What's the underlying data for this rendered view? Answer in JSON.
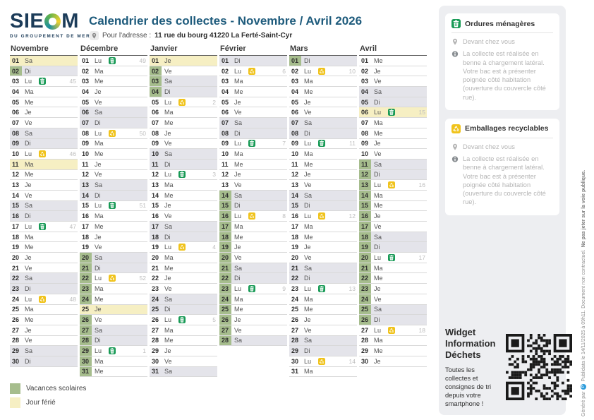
{
  "header": {
    "brand": "SIEOM",
    "brand_subtitle": "DU GROUPEMENT DE MER",
    "title": "Calendrier des collectes - Novembre / Avril 2026",
    "address_label": "Pour l'adresse :",
    "address": "11 rue du bourg 41220 La Ferté-Saint-Cyr"
  },
  "colors": {
    "title": "#1e5b7c",
    "weekend": "#e4e4ea",
    "ferie": "#f6efc3",
    "vacances": "#a6bd8d",
    "ordures_icon": "#189a56",
    "emballages_icon": "#f0c31c"
  },
  "legend": [
    {
      "label": "Vacances scolaires",
      "color": "#a6bd8d"
    },
    {
      "label": "Jour férié",
      "color": "#f6efc3"
    }
  ],
  "sidebar": {
    "cards": [
      {
        "icon": "trash",
        "icon_color": "#189a56",
        "title": "Ordures ménagères",
        "location": "Devant chez vous",
        "note": "La collecte est réalisée en benne à chargement latéral. Votre bac est à présenter poignée côté habitation (ouverture du couvercle côté rue)."
      },
      {
        "icon": "recycle",
        "icon_color": "#f0c31c",
        "title": "Emballages recyclables",
        "location": "Devant chez vous",
        "note": "La collecte est réalisée en benne à chargement latéral. Votre bac est à présenter poignée côté habitation (ouverture du couvercle côté rue)."
      }
    ],
    "widget": {
      "title": "Widget Information Déchets",
      "text": "Toutes les collectes et consignes de tri depuis votre smartphone !"
    }
  },
  "footer_vertical": {
    "pre": "Généré par",
    "brand_initial": "P",
    "mid": "Publidata le 14/11/2025 à 09h11. Document non contractuel.",
    "bold": "Ne pas jeter sur la voie publique."
  },
  "months": [
    {
      "name": "Novembre",
      "days": [
        {
          "n": "01",
          "d": "Sa",
          "h": 1
        },
        {
          "n": "02",
          "d": "Di",
          "w": 1,
          "v": 1
        },
        {
          "n": "03",
          "d": "Lu",
          "i": "om",
          "wk": "45"
        },
        {
          "n": "04",
          "d": "Ma"
        },
        {
          "n": "05",
          "d": "Me"
        },
        {
          "n": "06",
          "d": "Je"
        },
        {
          "n": "07",
          "d": "Ve"
        },
        {
          "n": "08",
          "d": "Sa",
          "w": 1
        },
        {
          "n": "09",
          "d": "Di",
          "w": 1
        },
        {
          "n": "10",
          "d": "Lu",
          "i": "er",
          "wk": "46"
        },
        {
          "n": "11",
          "d": "Ma",
          "h": 1
        },
        {
          "n": "12",
          "d": "Me"
        },
        {
          "n": "13",
          "d": "Je"
        },
        {
          "n": "14",
          "d": "Ve"
        },
        {
          "n": "15",
          "d": "Sa",
          "w": 1
        },
        {
          "n": "16",
          "d": "Di",
          "w": 1
        },
        {
          "n": "17",
          "d": "Lu",
          "i": "om",
          "wk": "47"
        },
        {
          "n": "18",
          "d": "Ma"
        },
        {
          "n": "19",
          "d": "Me"
        },
        {
          "n": "20",
          "d": "Je"
        },
        {
          "n": "21",
          "d": "Ve"
        },
        {
          "n": "22",
          "d": "Sa",
          "w": 1
        },
        {
          "n": "23",
          "d": "Di",
          "w": 1
        },
        {
          "n": "24",
          "d": "Lu",
          "i": "er",
          "wk": "48"
        },
        {
          "n": "25",
          "d": "Ma"
        },
        {
          "n": "26",
          "d": "Me"
        },
        {
          "n": "27",
          "d": "Je"
        },
        {
          "n": "28",
          "d": "Ve"
        },
        {
          "n": "29",
          "d": "Sa",
          "w": 1
        },
        {
          "n": "30",
          "d": "Di",
          "w": 1
        }
      ]
    },
    {
      "name": "Décembre",
      "days": [
        {
          "n": "01",
          "d": "Lu",
          "i": "om",
          "wk": "49"
        },
        {
          "n": "02",
          "d": "Ma"
        },
        {
          "n": "03",
          "d": "Me"
        },
        {
          "n": "04",
          "d": "Je"
        },
        {
          "n": "05",
          "d": "Ve"
        },
        {
          "n": "06",
          "d": "Sa",
          "w": 1
        },
        {
          "n": "07",
          "d": "Di",
          "w": 1
        },
        {
          "n": "08",
          "d": "Lu",
          "i": "er",
          "wk": "50"
        },
        {
          "n": "09",
          "d": "Ma"
        },
        {
          "n": "10",
          "d": "Me"
        },
        {
          "n": "11",
          "d": "Je"
        },
        {
          "n": "12",
          "d": "Ve"
        },
        {
          "n": "13",
          "d": "Sa",
          "w": 1
        },
        {
          "n": "14",
          "d": "Di",
          "w": 1
        },
        {
          "n": "15",
          "d": "Lu",
          "i": "om",
          "wk": "51"
        },
        {
          "n": "16",
          "d": "Ma"
        },
        {
          "n": "17",
          "d": "Me"
        },
        {
          "n": "18",
          "d": "Je"
        },
        {
          "n": "19",
          "d": "Ve"
        },
        {
          "n": "20",
          "d": "Sa",
          "w": 1,
          "v": 1
        },
        {
          "n": "21",
          "d": "Di",
          "w": 1,
          "v": 1
        },
        {
          "n": "22",
          "d": "Lu",
          "i": "er",
          "wk": "52",
          "v": 1
        },
        {
          "n": "23",
          "d": "Ma",
          "v": 1
        },
        {
          "n": "24",
          "d": "Me",
          "v": 1
        },
        {
          "n": "25",
          "d": "Je",
          "h": 1
        },
        {
          "n": "26",
          "d": "Ve",
          "v": 1
        },
        {
          "n": "27",
          "d": "Sa",
          "w": 1,
          "v": 1
        },
        {
          "n": "28",
          "d": "Di",
          "w": 1,
          "v": 1
        },
        {
          "n": "29",
          "d": "Lu",
          "i": "om",
          "wk": "1",
          "v": 1
        },
        {
          "n": "30",
          "d": "Ma",
          "v": 1
        },
        {
          "n": "31",
          "d": "Me",
          "v": 1
        }
      ]
    },
    {
      "name": "Janvier",
      "days": [
        {
          "n": "01",
          "d": "Je",
          "h": 1
        },
        {
          "n": "02",
          "d": "Ve",
          "v": 1
        },
        {
          "n": "03",
          "d": "Sa",
          "w": 1,
          "v": 1
        },
        {
          "n": "04",
          "d": "Di",
          "w": 1,
          "v": 1
        },
        {
          "n": "05",
          "d": "Lu",
          "i": "er",
          "wk": "2"
        },
        {
          "n": "06",
          "d": "Ma"
        },
        {
          "n": "07",
          "d": "Me"
        },
        {
          "n": "08",
          "d": "Je"
        },
        {
          "n": "09",
          "d": "Ve"
        },
        {
          "n": "10",
          "d": "Sa",
          "w": 1
        },
        {
          "n": "11",
          "d": "Di",
          "w": 1
        },
        {
          "n": "12",
          "d": "Lu",
          "i": "om",
          "wk": "3"
        },
        {
          "n": "13",
          "d": "Ma"
        },
        {
          "n": "14",
          "d": "Me"
        },
        {
          "n": "15",
          "d": "Je"
        },
        {
          "n": "16",
          "d": "Ve"
        },
        {
          "n": "17",
          "d": "Sa",
          "w": 1
        },
        {
          "n": "18",
          "d": "Di",
          "w": 1
        },
        {
          "n": "19",
          "d": "Lu",
          "i": "er",
          "wk": "4"
        },
        {
          "n": "20",
          "d": "Ma"
        },
        {
          "n": "21",
          "d": "Me"
        },
        {
          "n": "22",
          "d": "Je"
        },
        {
          "n": "23",
          "d": "Ve"
        },
        {
          "n": "24",
          "d": "Sa",
          "w": 1
        },
        {
          "n": "25",
          "d": "Di",
          "w": 1
        },
        {
          "n": "26",
          "d": "Lu",
          "i": "om",
          "wk": "5"
        },
        {
          "n": "27",
          "d": "Ma"
        },
        {
          "n": "28",
          "d": "Me"
        },
        {
          "n": "29",
          "d": "Je"
        },
        {
          "n": "30",
          "d": "Ve"
        },
        {
          "n": "31",
          "d": "Sa",
          "w": 1
        }
      ]
    },
    {
      "name": "Février",
      "days": [
        {
          "n": "01",
          "d": "Di",
          "w": 1
        },
        {
          "n": "02",
          "d": "Lu",
          "i": "er",
          "wk": "6"
        },
        {
          "n": "03",
          "d": "Ma"
        },
        {
          "n": "04",
          "d": "Me"
        },
        {
          "n": "05",
          "d": "Je"
        },
        {
          "n": "06",
          "d": "Ve"
        },
        {
          "n": "07",
          "d": "Sa",
          "w": 1
        },
        {
          "n": "08",
          "d": "Di",
          "w": 1
        },
        {
          "n": "09",
          "d": "Lu",
          "i": "om",
          "wk": "7"
        },
        {
          "n": "10",
          "d": "Ma"
        },
        {
          "n": "11",
          "d": "Me"
        },
        {
          "n": "12",
          "d": "Je"
        },
        {
          "n": "13",
          "d": "Ve"
        },
        {
          "n": "14",
          "d": "Sa",
          "w": 1,
          "v": 1
        },
        {
          "n": "15",
          "d": "Di",
          "w": 1,
          "v": 1
        },
        {
          "n": "16",
          "d": "Lu",
          "i": "er",
          "wk": "8",
          "v": 1
        },
        {
          "n": "17",
          "d": "Ma",
          "v": 1
        },
        {
          "n": "18",
          "d": "Me",
          "v": 1
        },
        {
          "n": "19",
          "d": "Je",
          "v": 1
        },
        {
          "n": "20",
          "d": "Ve",
          "v": 1
        },
        {
          "n": "21",
          "d": "Sa",
          "w": 1,
          "v": 1
        },
        {
          "n": "22",
          "d": "Di",
          "w": 1,
          "v": 1
        },
        {
          "n": "23",
          "d": "Lu",
          "i": "om",
          "wk": "9",
          "v": 1
        },
        {
          "n": "24",
          "d": "Ma",
          "v": 1
        },
        {
          "n": "25",
          "d": "Me",
          "v": 1
        },
        {
          "n": "26",
          "d": "Je",
          "v": 1
        },
        {
          "n": "27",
          "d": "Ve",
          "v": 1
        },
        {
          "n": "28",
          "d": "Sa",
          "w": 1,
          "v": 1
        }
      ]
    },
    {
      "name": "Mars",
      "days": [
        {
          "n": "01",
          "d": "Di",
          "w": 1,
          "v": 1
        },
        {
          "n": "02",
          "d": "Lu",
          "i": "er",
          "wk": "10"
        },
        {
          "n": "03",
          "d": "Ma"
        },
        {
          "n": "04",
          "d": "Me"
        },
        {
          "n": "05",
          "d": "Je"
        },
        {
          "n": "06",
          "d": "Ve"
        },
        {
          "n": "07",
          "d": "Sa",
          "w": 1
        },
        {
          "n": "08",
          "d": "Di",
          "w": 1
        },
        {
          "n": "09",
          "d": "Lu",
          "i": "om",
          "wk": "11"
        },
        {
          "n": "10",
          "d": "Ma"
        },
        {
          "n": "11",
          "d": "Me"
        },
        {
          "n": "12",
          "d": "Je"
        },
        {
          "n": "13",
          "d": "Ve"
        },
        {
          "n": "14",
          "d": "Sa",
          "w": 1
        },
        {
          "n": "15",
          "d": "Di",
          "w": 1
        },
        {
          "n": "16",
          "d": "Lu",
          "i": "er",
          "wk": "12"
        },
        {
          "n": "17",
          "d": "Ma"
        },
        {
          "n": "18",
          "d": "Me"
        },
        {
          "n": "19",
          "d": "Je"
        },
        {
          "n": "20",
          "d": "Ve"
        },
        {
          "n": "21",
          "d": "Sa",
          "w": 1
        },
        {
          "n": "22",
          "d": "Di",
          "w": 1
        },
        {
          "n": "23",
          "d": "Lu",
          "i": "om",
          "wk": "13"
        },
        {
          "n": "24",
          "d": "Ma"
        },
        {
          "n": "25",
          "d": "Me"
        },
        {
          "n": "26",
          "d": "Je"
        },
        {
          "n": "27",
          "d": "Ve"
        },
        {
          "n": "28",
          "d": "Sa",
          "w": 1
        },
        {
          "n": "29",
          "d": "Di",
          "w": 1
        },
        {
          "n": "30",
          "d": "Lu",
          "i": "er",
          "wk": "14"
        },
        {
          "n": "31",
          "d": "Ma"
        }
      ]
    },
    {
      "name": "Avril",
      "days": [
        {
          "n": "01",
          "d": "Me"
        },
        {
          "n": "02",
          "d": "Je"
        },
        {
          "n": "03",
          "d": "Ve"
        },
        {
          "n": "04",
          "d": "Sa",
          "w": 1
        },
        {
          "n": "05",
          "d": "Di",
          "w": 1
        },
        {
          "n": "06",
          "d": "Lu",
          "h": 1,
          "i": "om",
          "wk": "15"
        },
        {
          "n": "07",
          "d": "Ma"
        },
        {
          "n": "08",
          "d": "Me"
        },
        {
          "n": "09",
          "d": "Je"
        },
        {
          "n": "10",
          "d": "Ve"
        },
        {
          "n": "11",
          "d": "Sa",
          "w": 1,
          "v": 1
        },
        {
          "n": "12",
          "d": "Di",
          "w": 1,
          "v": 1
        },
        {
          "n": "13",
          "d": "Lu",
          "i": "er",
          "wk": "16",
          "v": 1
        },
        {
          "n": "14",
          "d": "Ma",
          "v": 1
        },
        {
          "n": "15",
          "d": "Me",
          "v": 1
        },
        {
          "n": "16",
          "d": "Je",
          "v": 1
        },
        {
          "n": "17",
          "d": "Ve",
          "v": 1
        },
        {
          "n": "18",
          "d": "Sa",
          "w": 1,
          "v": 1
        },
        {
          "n": "19",
          "d": "Di",
          "w": 1,
          "v": 1
        },
        {
          "n": "20",
          "d": "Lu",
          "i": "om",
          "wk": "17",
          "v": 1
        },
        {
          "n": "21",
          "d": "Ma",
          "v": 1
        },
        {
          "n": "22",
          "d": "Me",
          "v": 1
        },
        {
          "n": "23",
          "d": "Je",
          "v": 1
        },
        {
          "n": "24",
          "d": "Ve",
          "v": 1
        },
        {
          "n": "25",
          "d": "Sa",
          "w": 1,
          "v": 1
        },
        {
          "n": "26",
          "d": "Di",
          "w": 1,
          "v": 1
        },
        {
          "n": "27",
          "d": "Lu",
          "i": "er",
          "wk": "18"
        },
        {
          "n": "28",
          "d": "Ma"
        },
        {
          "n": "29",
          "d": "Me"
        },
        {
          "n": "30",
          "d": "Je"
        }
      ]
    }
  ]
}
